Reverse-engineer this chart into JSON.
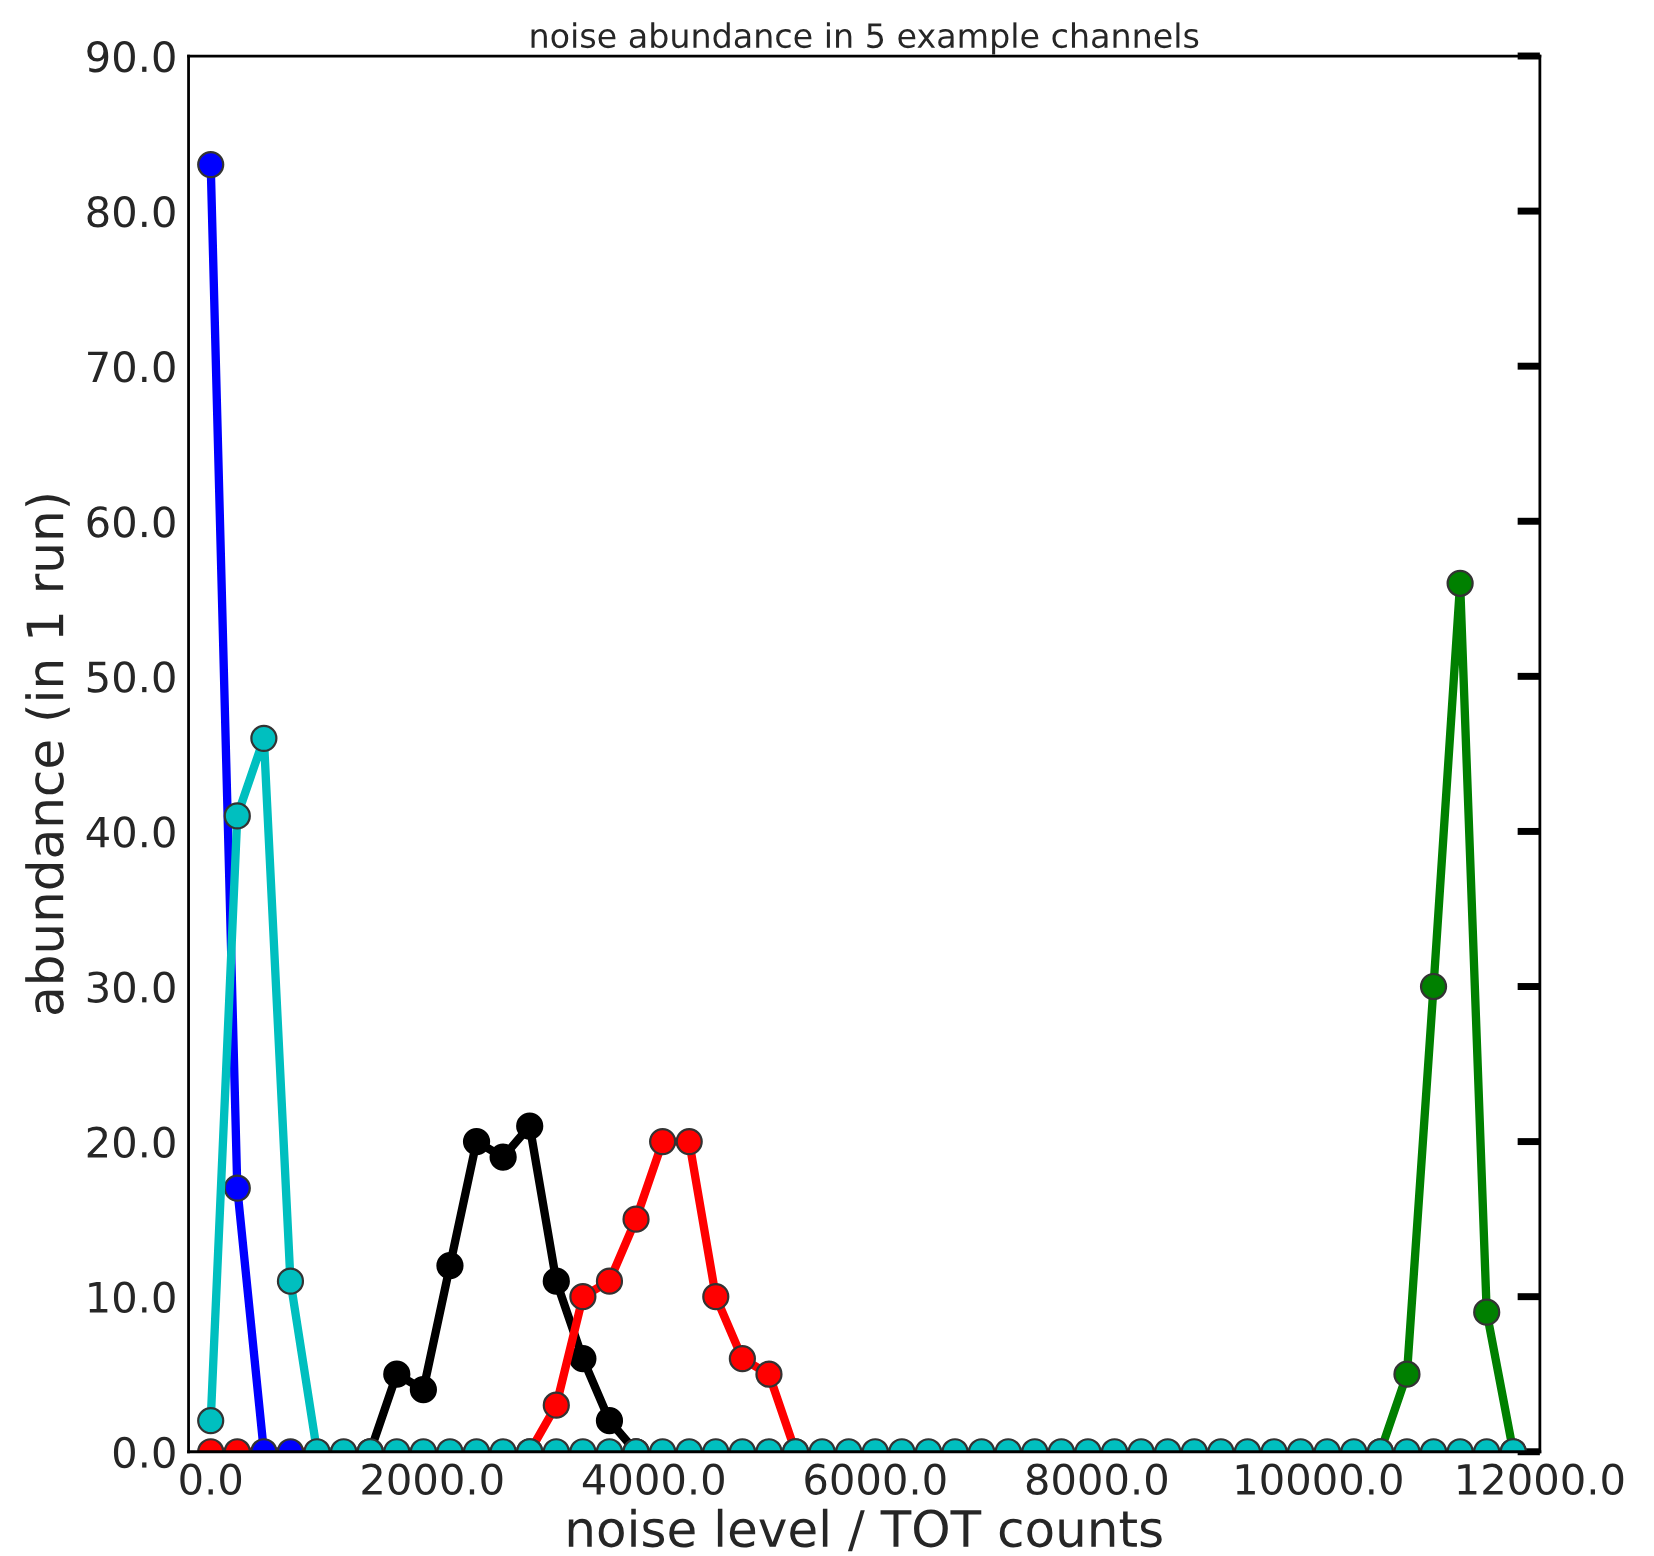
{
  "chart_data": {
    "type": "line",
    "title": "noise abundance in 5 example channels",
    "xlabel": "noise level / TOT counts",
    "ylabel": "abundance (in 1 run)",
    "x": [
      0,
      240,
      480,
      720,
      960,
      1200,
      1440,
      1680,
      1920,
      2160,
      2400,
      2640,
      2880,
      3120,
      3360,
      3600,
      3840,
      4080,
      4320,
      4560,
      4800,
      5040,
      5280,
      5520,
      5760,
      6000,
      6240,
      6480,
      6720,
      6960,
      7200,
      7440,
      7680,
      7920,
      8160,
      8400,
      8640,
      8880,
      9120,
      9360,
      9600,
      9840,
      10080,
      10320,
      10560,
      10800,
      11040,
      11280,
      11520,
      11760
    ],
    "series": [
      {
        "color": "#000000",
        "values": [
          null,
          null,
          null,
          null,
          null,
          null,
          0,
          5,
          4,
          12,
          20,
          19,
          21,
          11,
          6,
          2,
          0,
          null,
          null,
          null,
          null,
          null,
          null,
          null,
          null,
          null,
          null,
          null,
          null,
          null,
          null,
          null,
          null,
          null,
          null,
          null,
          null,
          null,
          null,
          null,
          null,
          null,
          null,
          null,
          null,
          null,
          null,
          null,
          null,
          null
        ]
      },
      {
        "color": "#008000",
        "values": [
          null,
          null,
          null,
          null,
          null,
          null,
          null,
          null,
          null,
          null,
          null,
          null,
          null,
          null,
          null,
          null,
          null,
          null,
          null,
          null,
          null,
          null,
          null,
          null,
          null,
          null,
          null,
          null,
          null,
          null,
          null,
          null,
          null,
          null,
          null,
          null,
          null,
          null,
          null,
          null,
          null,
          null,
          null,
          null,
          0,
          5,
          30,
          56,
          9,
          0
        ]
      },
      {
        "color": "#ff0000",
        "values": [
          0,
          0,
          null,
          null,
          null,
          null,
          null,
          null,
          null,
          null,
          null,
          null,
          0,
          3,
          10,
          11,
          15,
          20,
          20,
          10,
          6,
          5,
          0,
          null,
          null,
          null,
          null,
          null,
          null,
          null,
          null,
          null,
          null,
          null,
          null,
          null,
          null,
          null,
          null,
          null,
          null,
          null,
          null,
          null,
          null,
          null,
          null,
          null,
          null,
          null
        ]
      },
      {
        "color": "#0000ff",
        "values": [
          83,
          17,
          0,
          0,
          null,
          null,
          null,
          null,
          null,
          null,
          null,
          null,
          null,
          null,
          null,
          null,
          null,
          null,
          null,
          null,
          null,
          null,
          null,
          null,
          null,
          null,
          null,
          null,
          null,
          null,
          null,
          null,
          null,
          null,
          null,
          null,
          null,
          null,
          null,
          null,
          null,
          null,
          null,
          null,
          null,
          null,
          null,
          null,
          null,
          null
        ]
      },
      {
        "color": "#00bfbf",
        "values": [
          2,
          41,
          46,
          11,
          0,
          0,
          0,
          0,
          0,
          0,
          0,
          0,
          0,
          0,
          0,
          0,
          0,
          0,
          0,
          0,
          0,
          0,
          0,
          0,
          0,
          0,
          0,
          0,
          0,
          0,
          0,
          0,
          0,
          0,
          0,
          0,
          0,
          0,
          0,
          0,
          0,
          0,
          0,
          0,
          0,
          0,
          0,
          0,
          0,
          0
        ]
      }
    ],
    "xlim": [
      -200,
      12000
    ],
    "ylim": [
      0,
      90
    ],
    "xticks": [
      {
        "value": 0,
        "label": "0.0"
      },
      {
        "value": 2000,
        "label": "2000.0"
      },
      {
        "value": 4000,
        "label": "4000.0"
      },
      {
        "value": 6000,
        "label": "6000.0"
      },
      {
        "value": 8000,
        "label": "8000.0"
      },
      {
        "value": 10000,
        "label": "10000.0"
      },
      {
        "value": 12000,
        "label": "12000.0"
      }
    ],
    "yticks": [
      {
        "value": 0,
        "label": "0.0"
      },
      {
        "value": 10,
        "label": "10.0"
      },
      {
        "value": 20,
        "label": "20.0"
      },
      {
        "value": 30,
        "label": "30.0"
      },
      {
        "value": 40,
        "label": "40.0"
      },
      {
        "value": 50,
        "label": "50.0"
      },
      {
        "value": 60,
        "label": "60.0"
      },
      {
        "value": 70,
        "label": "70.0"
      },
      {
        "value": 80,
        "label": "80.0"
      },
      {
        "value": 90,
        "label": "90.0"
      }
    ],
    "marker": "circle",
    "line_style": "solid",
    "grid": false,
    "legend": false
  }
}
